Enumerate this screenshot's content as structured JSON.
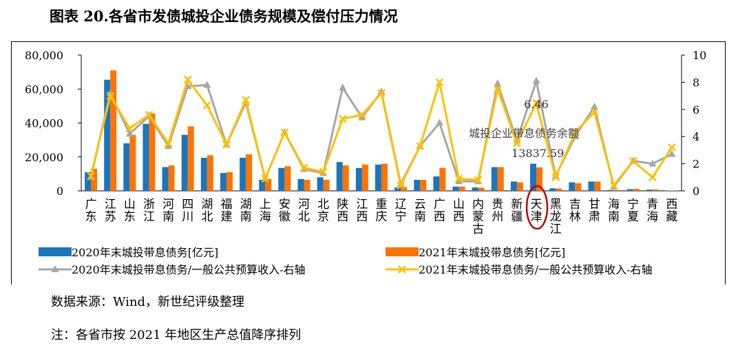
{
  "title": "图表 20.各省市发债城投企业债务规模及偿付压力情况",
  "source_note": "数据来源：Wind，新世纪评级整理",
  "order_note": "注：各省市按 2021 年地区生产总值降序排列",
  "colors": {
    "bar2020": "#1b75bc",
    "bar2021": "#ff7300",
    "line2020": "#a6a6a6",
    "line2021": "#ffc000",
    "circle": "#c00000"
  },
  "chart_data": {
    "type": "bar",
    "categories": [
      "广东",
      "江苏",
      "山东",
      "浙江",
      "河南",
      "四川",
      "湖北",
      "福建",
      "湖南",
      "上海",
      "安徽",
      "河北",
      "北京",
      "陕西",
      "江西",
      "重庆",
      "辽宁",
      "云南",
      "广西",
      "山西",
      "内蒙古",
      "贵州",
      "新疆",
      "天津",
      "黑龙江",
      "吉林",
      "甘肃",
      "海南",
      "宁夏",
      "青海",
      "西藏"
    ],
    "category_labels": [
      "广\n东",
      "江\n苏",
      "山\n东",
      "浙\n江",
      "河\n南",
      "四\n川",
      "湖\n北",
      "福\n建",
      "湖\n南",
      "上\n海",
      "安\n徽",
      "河\n北",
      "北\n京",
      "陕\n西",
      "江\n西",
      "重\n庆",
      "辽\n宁",
      "云\n南",
      "广\n西",
      "山\n西",
      "内\n蒙\n古",
      "贵\n州",
      "新\n疆",
      "天\n津",
      "黑\n龙\n江",
      "吉\n林",
      "甘\n肃",
      "海\n南",
      "宁\n夏",
      "青\n海",
      "西\n藏"
    ],
    "series": [
      {
        "name": "2020年末城投带息债务[亿元]",
        "axis": "left",
        "kind": "bar",
        "values": [
          11000,
          65500,
          28000,
          39500,
          14000,
          33000,
          19500,
          10500,
          19500,
          6500,
          13500,
          7000,
          8000,
          17000,
          13500,
          15500,
          2000,
          6500,
          8500,
          2500,
          2000,
          14000,
          5500,
          16000,
          1500,
          5000,
          5500,
          500,
          1000,
          700,
          200
        ]
      },
      {
        "name": "2021年末城投带息债务[亿元]",
        "axis": "left",
        "kind": "bar",
        "values": [
          13000,
          71000,
          33000,
          45500,
          15000,
          38000,
          21000,
          11000,
          21500,
          7000,
          14500,
          6500,
          6500,
          15000,
          15500,
          16000,
          2300,
          6500,
          13500,
          2500,
          1800,
          14000,
          5000,
          13837.59,
          1400,
          4500,
          5500,
          500,
          1200,
          800,
          300
        ]
      },
      {
        "name": "2020年末城投带息债务/一般公共预算收入-右轴",
        "axis": "right",
        "kind": "line",
        "values": [
          1.0,
          7.2,
          4.2,
          5.5,
          3.3,
          7.7,
          7.8,
          3.4,
          6.5,
          0.9,
          4.3,
          1.6,
          1.3,
          7.6,
          5.4,
          7.3,
          0.5,
          3.3,
          5.0,
          0.7,
          0.7,
          7.9,
          3.7,
          8.1,
          1.1,
          4.0,
          6.2,
          0.3,
          2.2,
          2.0,
          2.7
        ]
      },
      {
        "name": "2021年末城投带息债务/一般公共预算收入-右轴",
        "axis": "right",
        "kind": "line",
        "values": [
          1.1,
          7.0,
          4.6,
          5.6,
          3.5,
          8.2,
          6.3,
          3.4,
          6.7,
          0.9,
          4.3,
          1.7,
          1.4,
          5.3,
          5.6,
          7.2,
          0.4,
          3.3,
          8.0,
          0.9,
          0.8,
          7.5,
          3.5,
          6.46,
          1.0,
          4.3,
          5.8,
          0.4,
          2.2,
          1.0,
          3.2
        ]
      }
    ],
    "ylim_left": [
      0,
      80000
    ],
    "yticks_left": [
      "0",
      "20,000",
      "40,000",
      "60,000",
      "80,000"
    ],
    "ylim_right": [
      0,
      10
    ],
    "yticks_right": [
      "0",
      "2",
      "4",
      "6",
      "8",
      "10"
    ],
    "annotations": {
      "ratio_label": "6.46",
      "debt_caption": "城投企业带息债务余额",
      "debt_value": "13837.59",
      "highlight_category": "天津"
    },
    "legend_position": "bottom"
  }
}
